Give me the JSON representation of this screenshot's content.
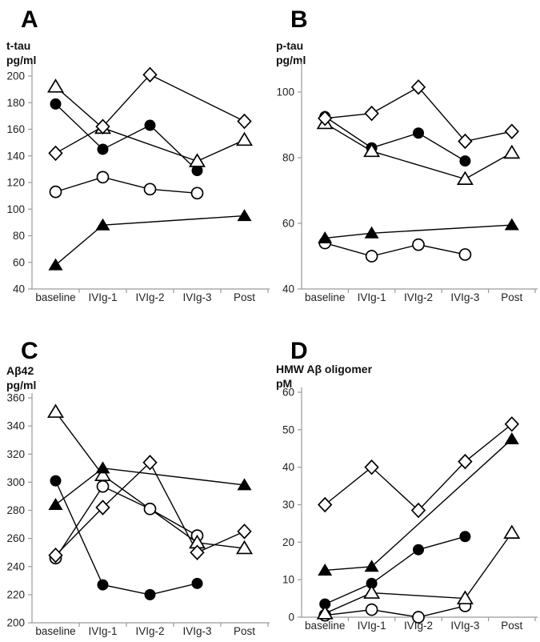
{
  "figure": {
    "background": "#ffffff",
    "colors": {
      "series": "#000000",
      "axis": "#9a9a9a",
      "tick_text": "#222222",
      "label_text": "#111111",
      "marker_fill_open": "#ffffff"
    }
  },
  "chart_data": [
    {
      "panel_label": "A",
      "type": "line",
      "title": "",
      "ylabel": [
        "t-tau",
        "pg/ml"
      ],
      "xlabel": "",
      "categories": [
        "baseline",
        "IVIg-1",
        "IVIg-2",
        "IVIg-3",
        "Post"
      ],
      "yticks": [
        40,
        60,
        80,
        100,
        120,
        140,
        160,
        180,
        200
      ],
      "ylim": [
        40,
        209
      ],
      "grid": false,
      "legend": "none",
      "series": [
        {
          "name": "filled-circle-patient",
          "marker": "filled-circle",
          "values": [
            179,
            145,
            163,
            129,
            null
          ]
        },
        {
          "name": "open-circle-patient",
          "marker": "open-circle",
          "values": [
            113,
            124,
            115,
            112,
            null
          ]
        },
        {
          "name": "open-triangle-patient",
          "marker": "open-triangle",
          "values": [
            192,
            161,
            null,
            136,
            152
          ]
        },
        {
          "name": "filled-triangle-patient",
          "marker": "filled-triangle",
          "values": [
            58,
            88,
            null,
            null,
            95
          ]
        },
        {
          "name": "open-diamond-patient",
          "marker": "open-diamond",
          "values": [
            142,
            162,
            201,
            null,
            166
          ]
        }
      ]
    },
    {
      "panel_label": "B",
      "type": "line",
      "title": "",
      "ylabel": [
        "p-tau",
        "pg/ml"
      ],
      "xlabel": "",
      "categories": [
        "baseline",
        "IVIg-1",
        "IVIg-2",
        "IVIg-3",
        "Post"
      ],
      "yticks": [
        40,
        60,
        80,
        100
      ],
      "ylim": [
        40,
        108
      ],
      "grid": false,
      "legend": "none",
      "series": [
        {
          "name": "filled-circle-patient",
          "marker": "filled-circle",
          "values": [
            92.5,
            83,
            87.5,
            79,
            null
          ]
        },
        {
          "name": "open-circle-patient",
          "marker": "open-circle",
          "values": [
            54,
            50,
            53.5,
            50.5,
            null
          ]
        },
        {
          "name": "open-triangle-patient",
          "marker": "open-triangle",
          "values": [
            90.5,
            82,
            null,
            73.5,
            81.5
          ]
        },
        {
          "name": "filled-triangle-patient",
          "marker": "filled-triangle",
          "values": [
            55.5,
            57,
            null,
            null,
            59.5
          ]
        },
        {
          "name": "open-diamond-patient",
          "marker": "open-diamond",
          "values": [
            92,
            93.5,
            101.5,
            85,
            88
          ]
        }
      ]
    },
    {
      "panel_label": "C",
      "type": "line",
      "title": "",
      "ylabel": [
        "Aβ42",
        "pg/ml"
      ],
      "xlabel": "",
      "categories": [
        "baseline",
        "IVIg-1",
        "IVIg-2",
        "IVIg-3",
        "Post"
      ],
      "yticks": [
        200,
        220,
        240,
        260,
        280,
        300,
        320,
        340,
        360
      ],
      "ylim": [
        200,
        363
      ],
      "grid": false,
      "legend": "none",
      "series": [
        {
          "name": "filled-circle-patient",
          "marker": "filled-circle",
          "values": [
            301,
            227,
            220,
            228,
            null
          ]
        },
        {
          "name": "open-circle-patient",
          "marker": "open-circle",
          "values": [
            246,
            297,
            281,
            262,
            null
          ]
        },
        {
          "name": "open-triangle-patient",
          "marker": "open-triangle",
          "values": [
            350,
            305,
            null,
            257,
            253
          ]
        },
        {
          "name": "filled-triangle-patient",
          "marker": "filled-triangle",
          "values": [
            284,
            310,
            null,
            null,
            298
          ]
        },
        {
          "name": "open-diamond-patient",
          "marker": "open-diamond",
          "values": [
            248,
            282,
            314,
            250,
            265
          ]
        }
      ]
    },
    {
      "panel_label": "D",
      "type": "line",
      "title": "",
      "ylabel": [
        "HMW Aβ oligomer",
        "pM"
      ],
      "xlabel": "",
      "categories": [
        "baseline",
        "IVIg-1",
        "IVIg-2",
        "IVIg-3",
        "Post"
      ],
      "yticks": [
        0,
        10,
        20,
        30,
        40,
        50,
        60
      ],
      "ylim": [
        0,
        61
      ],
      "grid": false,
      "legend": "none",
      "series": [
        {
          "name": "filled-circle-patient",
          "marker": "filled-circle",
          "values": [
            3.5,
            9,
            18,
            21.5,
            null
          ]
        },
        {
          "name": "open-circle-patient",
          "marker": "open-circle",
          "values": [
            0.5,
            2,
            0,
            3,
            null
          ]
        },
        {
          "name": "open-triangle-patient",
          "marker": "open-triangle",
          "values": [
            1,
            6.5,
            null,
            5,
            22.5
          ]
        },
        {
          "name": "filled-triangle-patient",
          "marker": "filled-triangle",
          "values": [
            12.5,
            13.5,
            null,
            null,
            47.5
          ]
        },
        {
          "name": "open-diamond-patient",
          "marker": "open-diamond",
          "values": [
            30,
            40,
            28.5,
            41.5,
            51.5
          ]
        }
      ]
    }
  ]
}
